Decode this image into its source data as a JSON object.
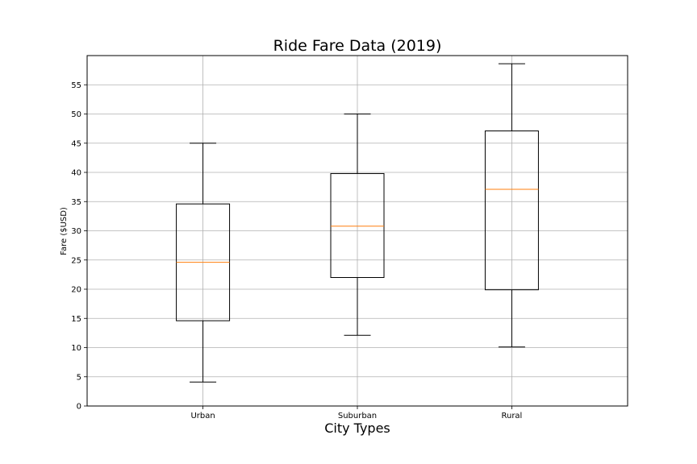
{
  "chart_data": {
    "type": "box",
    "title": "Ride Fare Data (2019)",
    "xlabel": "City Types",
    "ylabel": "Fare ($USD)",
    "ylim": [
      0,
      60
    ],
    "yticks": [
      0,
      5,
      10,
      15,
      20,
      25,
      30,
      35,
      40,
      45,
      50,
      55
    ],
    "grid": true,
    "categories": [
      "Urban",
      "Suburban",
      "Rural"
    ],
    "boxes": [
      {
        "category": "Urban",
        "whisker_low": 4.1,
        "q1": 14.6,
        "median": 24.6,
        "q3": 34.6,
        "whisker_high": 45.0
      },
      {
        "category": "Suburban",
        "whisker_low": 12.1,
        "q1": 22.0,
        "median": 30.8,
        "q3": 39.8,
        "whisker_high": 50.0
      },
      {
        "category": "Rural",
        "whisker_low": 10.1,
        "q1": 19.9,
        "median": 37.1,
        "q3": 47.1,
        "whisker_high": 58.6
      }
    ],
    "colors": {
      "box": "#000000",
      "median": "#ff7f0e",
      "grid": "#b0b0b0"
    }
  }
}
